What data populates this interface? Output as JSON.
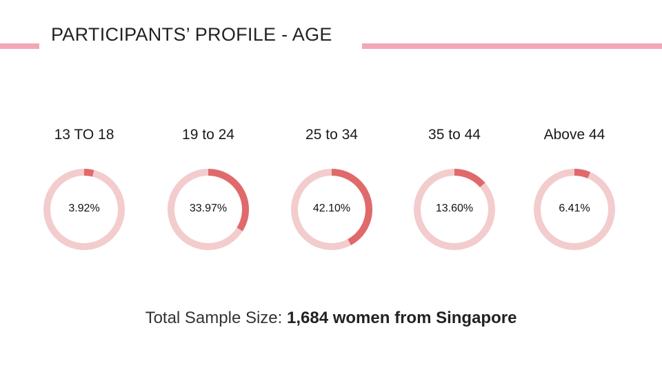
{
  "slide": {
    "title": "PARTICIPANTS’ PROFILE - AGE",
    "footer_prefix": "Total Sample Size: ",
    "footer_bold": "1,684 women from Singapore"
  },
  "colors": {
    "rule": "#f4a6b7",
    "donut_track": "#f3cccd",
    "donut_fill": "#e06a6b"
  },
  "chart_data": {
    "type": "donut",
    "categories": [
      "13 TO 18",
      "19 to 24",
      "25 to 34",
      "35 to 44",
      "Above 44"
    ],
    "values": [
      3.92,
      33.97,
      42.1,
      13.6,
      6.41
    ],
    "value_labels": [
      "3.92%",
      "33.97%",
      "42.10%",
      "13.60%",
      "6.41%"
    ],
    "unit": "%"
  }
}
